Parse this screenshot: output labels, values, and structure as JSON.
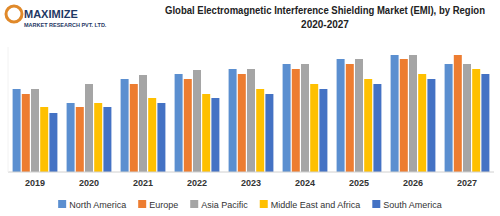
{
  "chart_data": {
    "type": "bar",
    "title": "Global Electromagnetic Interference Shielding Market (EMI), by Region",
    "subtitle": "2020-2027",
    "logo": [
      "MAXIMIZE",
      "MARKET RESEARCH PVT. LTD."
    ],
    "categories": [
      "2019",
      "2020",
      "2021",
      "2022",
      "2023",
      "2024",
      "2025",
      "2026",
      "2027"
    ],
    "series": [
      {
        "name": "North America",
        "color": "#5b8fd0",
        "values": [
          83,
          69,
          93,
          98,
          103,
          108,
          113,
          117,
          108
        ]
      },
      {
        "name": "Europe",
        "color": "#ed7d31",
        "values": [
          78,
          65,
          88,
          93,
          98,
          103,
          108,
          113,
          117
        ]
      },
      {
        "name": "Asia Pacific",
        "color": "#a5a5a5",
        "values": [
          83,
          88,
          97,
          102,
          103,
          108,
          113,
          117,
          108
        ]
      },
      {
        "name": "Middle East and Africa",
        "color": "#ffc000",
        "values": [
          65,
          69,
          74,
          78,
          83,
          88,
          93,
          98,
          103
        ]
      },
      {
        "name": "South America",
        "color": "#4472c4",
        "values": [
          59,
          65,
          69,
          74,
          78,
          83,
          88,
          93,
          98
        ]
      }
    ],
    "ylim": [
      0,
      125
    ],
    "tick_labels": "x",
    "grid": false,
    "legend": "bottom"
  }
}
